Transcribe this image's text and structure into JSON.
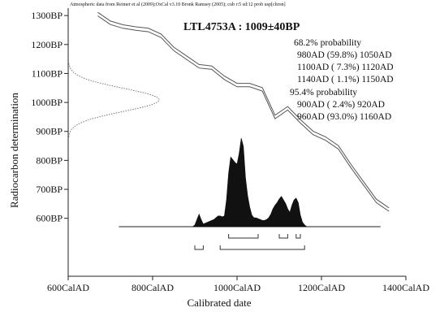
{
  "chart_data": {
    "type": "area",
    "credit": "Atmospheric data from Reimer et al (2009);OxCal v3.10 Bronk Ramsey (2005); cub r:5 sd:12 prob usp[chron]",
    "title": "LTL4753A : 1009±40BP",
    "xlabel": "Calibrated date",
    "ylabel": "Radiocarbon determination",
    "xlim": [
      600,
      1400
    ],
    "ylim": [
      400,
      1320
    ],
    "x_ticks": [
      {
        "value": 600,
        "label": "600CalAD"
      },
      {
        "value": 800,
        "label": "800CalAD"
      },
      {
        "value": 1000,
        "label": "1000CalAD"
      },
      {
        "value": 1200,
        "label": "1200CalAD"
      },
      {
        "value": 1400,
        "label": "1400CalAD"
      }
    ],
    "y_ticks": [
      {
        "value": 1300,
        "label": "1300BP"
      },
      {
        "value": 1200,
        "label": "1200BP"
      },
      {
        "value": 1100,
        "label": "1100BP"
      },
      {
        "value": 1000,
        "label": "1000BP"
      },
      {
        "value": 900,
        "label": "900BP"
      },
      {
        "value": 800,
        "label": "800BP"
      },
      {
        "value": 700,
        "label": "700BP"
      },
      {
        "value": 600,
        "label": "600BP"
      }
    ],
    "probability_text": {
      "p68_header": "68.2% probability",
      "p68_ranges": [
        "980AD (59.8%) 1050AD",
        "1100AD ( 7.3%) 1120AD",
        "1140AD ( 1.1%) 1150AD"
      ],
      "p95_header": "95.4% probability",
      "p95_ranges": [
        "900AD ( 2.4%) 920AD",
        "960AD (93.0%) 1160AD"
      ]
    },
    "radiocarbon_measurement": {
      "mean_bp": 1009,
      "sigma_bp": 40
    },
    "calibration_curve": {
      "x": [
        670,
        700,
        730,
        760,
        790,
        820,
        850,
        880,
        910,
        940,
        970,
        1000,
        1030,
        1060,
        1090,
        1120,
        1150,
        1180,
        1210,
        1240,
        1270,
        1300,
        1330,
        1360
      ],
      "y": [
        1305,
        1275,
        1262,
        1255,
        1250,
        1230,
        1185,
        1155,
        1125,
        1120,
        1085,
        1060,
        1060,
        1045,
        950,
        980,
        935,
        895,
        875,
        845,
        780,
        720,
        660,
        630
      ]
    },
    "posterior_distribution": {
      "x": [
        895,
        900,
        905,
        910,
        915,
        920,
        925,
        930,
        935,
        940,
        945,
        950,
        955,
        960,
        965,
        970,
        975,
        980,
        985,
        990,
        995,
        1000,
        1005,
        1010,
        1015,
        1020,
        1025,
        1030,
        1035,
        1040,
        1045,
        1050,
        1055,
        1060,
        1065,
        1070,
        1075,
        1080,
        1085,
        1090,
        1095,
        1100,
        1105,
        1110,
        1115,
        1120,
        1125,
        1130,
        1135,
        1140,
        1145,
        1150,
        1155,
        1160,
        1165
      ],
      "y": [
        0.0,
        0.02,
        0.08,
        0.14,
        0.08,
        0.03,
        0.04,
        0.05,
        0.06,
        0.07,
        0.08,
        0.1,
        0.12,
        0.12,
        0.11,
        0.12,
        0.3,
        0.6,
        0.78,
        0.75,
        0.72,
        0.7,
        0.82,
        0.99,
        0.9,
        0.55,
        0.35,
        0.22,
        0.13,
        0.1,
        0.1,
        0.09,
        0.08,
        0.07,
        0.07,
        0.08,
        0.1,
        0.14,
        0.2,
        0.24,
        0.27,
        0.31,
        0.34,
        0.3,
        0.26,
        0.2,
        0.16,
        0.24,
        0.3,
        0.32,
        0.27,
        0.13,
        0.05,
        0.02,
        0.0
      ]
    },
    "range_brackets": {
      "p68": [
        [
          980,
          1050
        ],
        [
          1100,
          1120
        ],
        [
          1140,
          1150
        ]
      ],
      "p95": [
        [
          900,
          920
        ],
        [
          960,
          1160
        ]
      ]
    },
    "grid": false
  }
}
